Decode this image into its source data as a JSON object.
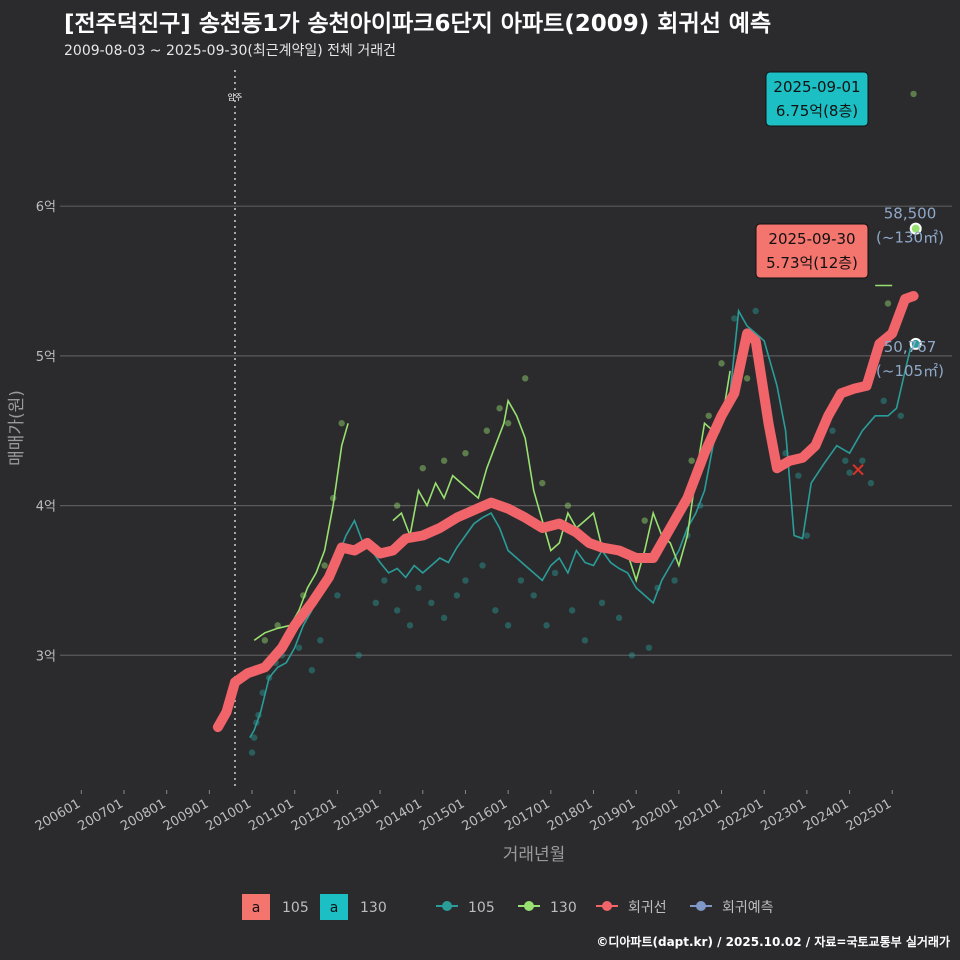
{
  "title": "[전주덕진구] 송천동1가 송천아이파크6단지 아파트(2009) 회귀선 예측",
  "subtitle": "2009-08-03 ~ 2025-09-30(최근계약일) 전체 거래건",
  "credit": "©디아파트(dapt.kr) / 2025.10.02 / 자료=국토교통부 실거래가",
  "colors": {
    "s105": "#2a9d9a",
    "s130": "#98e070",
    "trend": "#f0646a",
    "pred": "#7f98c8",
    "box130": "#1bbfc4",
    "box105": "#f4746e",
    "bg": "#2b2b2d",
    "grid": "#5a5a5c"
  },
  "chart_data": {
    "type": "line",
    "xlabel": "거래년월",
    "ylabel": "매매가(원)",
    "x_ticks": [
      "200601",
      "200701",
      "200801",
      "200901",
      "201001",
      "201101",
      "201201",
      "201301",
      "201401",
      "201501",
      "201601",
      "201701",
      "201801",
      "201901",
      "202001",
      "202101",
      "202201",
      "202301",
      "202401",
      "202501"
    ],
    "y_ticks": [
      {
        "v": 3,
        "label": "3억"
      },
      {
        "v": 4,
        "label": "4억"
      },
      {
        "v": 5,
        "label": "5억"
      },
      {
        "v": 6,
        "label": "6억"
      }
    ],
    "xlim": [
      2005.5,
      2026.4
    ],
    "ylim": [
      2.1,
      6.95
    ],
    "move_in": {
      "x": 2009.6,
      "label": "입주"
    },
    "legend": {
      "fill": [
        {
          "key": "a",
          "label": "105",
          "color": "#f4746e"
        },
        {
          "key": "a",
          "label": "130",
          "color": "#1bbfc4"
        }
      ],
      "lines": [
        {
          "label": "105",
          "color": "#2a9d9a"
        },
        {
          "label": "130",
          "color": "#98e070"
        },
        {
          "label": "회귀선",
          "color": "#f0646a"
        },
        {
          "label": "회귀예측",
          "color": "#7f98c8"
        }
      ]
    },
    "series": [
      {
        "name": "105",
        "values": [
          [
            2009.95,
            2.45
          ],
          [
            2010.05,
            2.5
          ],
          [
            2010.2,
            2.62
          ],
          [
            2010.4,
            2.85
          ],
          [
            2010.6,
            2.92
          ],
          [
            2010.8,
            2.95
          ],
          [
            2011.0,
            3.05
          ],
          [
            2011.2,
            3.2
          ],
          [
            2011.4,
            3.3
          ],
          [
            2011.6,
            3.42
          ],
          [
            2011.8,
            3.55
          ],
          [
            2012.0,
            3.65
          ],
          [
            2012.2,
            3.8
          ],
          [
            2012.4,
            3.9
          ],
          [
            2012.6,
            3.75
          ],
          [
            2012.8,
            3.7
          ],
          [
            2013.0,
            3.62
          ],
          [
            2013.2,
            3.55
          ],
          [
            2013.4,
            3.58
          ],
          [
            2013.6,
            3.52
          ],
          [
            2013.8,
            3.6
          ],
          [
            2014.0,
            3.55
          ],
          [
            2014.2,
            3.6
          ],
          [
            2014.4,
            3.65
          ],
          [
            2014.6,
            3.62
          ],
          [
            2014.8,
            3.72
          ],
          [
            2015.0,
            3.8
          ],
          [
            2015.2,
            3.88
          ],
          [
            2015.4,
            3.92
          ],
          [
            2015.6,
            3.95
          ],
          [
            2015.8,
            3.85
          ],
          [
            2016.0,
            3.7
          ],
          [
            2016.2,
            3.65
          ],
          [
            2016.4,
            3.6
          ],
          [
            2016.6,
            3.55
          ],
          [
            2016.8,
            3.5
          ],
          [
            2017.0,
            3.6
          ],
          [
            2017.2,
            3.65
          ],
          [
            2017.4,
            3.55
          ],
          [
            2017.6,
            3.7
          ],
          [
            2017.8,
            3.62
          ],
          [
            2018.0,
            3.6
          ],
          [
            2018.2,
            3.7
          ],
          [
            2018.4,
            3.62
          ],
          [
            2018.6,
            3.58
          ],
          [
            2018.8,
            3.55
          ],
          [
            2019.0,
            3.45
          ],
          [
            2019.2,
            3.4
          ],
          [
            2019.4,
            3.35
          ],
          [
            2019.6,
            3.5
          ],
          [
            2019.8,
            3.6
          ],
          [
            2020.0,
            3.7
          ],
          [
            2020.2,
            3.85
          ],
          [
            2020.4,
            3.95
          ],
          [
            2020.6,
            4.1
          ],
          [
            2020.8,
            4.4
          ],
          [
            2021.0,
            4.6
          ],
          [
            2021.2,
            4.75
          ],
          [
            2021.4,
            5.3
          ],
          [
            2021.6,
            5.2
          ],
          [
            2021.8,
            5.15
          ],
          [
            2022.0,
            5.1
          ],
          [
            2022.3,
            4.8
          ],
          [
            2022.5,
            4.5
          ],
          [
            2022.7,
            3.8
          ],
          [
            2022.9,
            3.78
          ],
          [
            2023.1,
            4.15
          ],
          [
            2023.4,
            4.28
          ],
          [
            2023.7,
            4.4
          ],
          [
            2024.0,
            4.35
          ],
          [
            2024.3,
            4.5
          ],
          [
            2024.6,
            4.6
          ],
          [
            2024.9,
            4.6
          ],
          [
            2025.1,
            4.65
          ],
          [
            2025.3,
            4.9
          ],
          [
            2025.45,
            5.08
          ]
        ]
      },
      {
        "name": "130",
        "values": [
          [
            2010.05,
            3.1
          ],
          [
            2010.3,
            3.15
          ],
          [
            2010.6,
            3.18
          ],
          [
            2010.9,
            3.2
          ],
          [
            2011.1,
            3.3
          ],
          [
            2011.3,
            3.45
          ],
          [
            2011.5,
            3.55
          ],
          [
            2011.7,
            3.7
          ],
          [
            2011.9,
            4.0
          ],
          [
            2012.1,
            4.4
          ],
          [
            2012.25,
            4.55
          ],
          [
            2013.3,
            3.9
          ],
          [
            2013.5,
            3.95
          ],
          [
            2013.7,
            3.8
          ],
          [
            2013.9,
            4.1
          ],
          [
            2014.1,
            4.0
          ],
          [
            2014.3,
            4.15
          ],
          [
            2014.5,
            4.05
          ],
          [
            2014.7,
            4.2
          ],
          [
            2014.9,
            4.15
          ],
          [
            2015.1,
            4.1
          ],
          [
            2015.3,
            4.05
          ],
          [
            2015.5,
            4.25
          ],
          [
            2015.7,
            4.4
          ],
          [
            2015.9,
            4.55
          ],
          [
            2016.0,
            4.7
          ],
          [
            2016.2,
            4.6
          ],
          [
            2016.4,
            4.45
          ],
          [
            2016.6,
            4.1
          ],
          [
            2016.8,
            3.9
          ],
          [
            2017.0,
            3.7
          ],
          [
            2017.2,
            3.75
          ],
          [
            2017.4,
            3.95
          ],
          [
            2017.6,
            3.85
          ],
          [
            2017.8,
            3.9
          ],
          [
            2018.0,
            3.95
          ],
          [
            2018.2,
            3.72
          ],
          [
            2018.4,
            3.7
          ],
          [
            2018.6,
            3.72
          ],
          [
            2018.8,
            3.68
          ],
          [
            2019.0,
            3.5
          ],
          [
            2019.2,
            3.7
          ],
          [
            2019.4,
            3.95
          ],
          [
            2019.6,
            3.8
          ],
          [
            2019.8,
            3.75
          ],
          [
            2020.0,
            3.6
          ],
          [
            2020.2,
            3.8
          ],
          [
            2020.4,
            4.2
          ],
          [
            2020.6,
            4.55
          ],
          [
            2020.8,
            4.5
          ],
          [
            2021.0,
            4.55
          ],
          [
            2021.2,
            4.9
          ],
          [
            2024.6,
            5.47
          ],
          [
            2025.0,
            5.47
          ]
        ]
      },
      {
        "name": "회귀선",
        "values": [
          [
            2009.2,
            2.52
          ],
          [
            2009.4,
            2.62
          ],
          [
            2009.6,
            2.82
          ],
          [
            2009.9,
            2.88
          ],
          [
            2010.3,
            2.92
          ],
          [
            2010.7,
            3.05
          ],
          [
            2011.0,
            3.2
          ],
          [
            2011.4,
            3.35
          ],
          [
            2011.8,
            3.52
          ],
          [
            2012.1,
            3.72
          ],
          [
            2012.4,
            3.7
          ],
          [
            2012.7,
            3.75
          ],
          [
            2013.0,
            3.68
          ],
          [
            2013.3,
            3.7
          ],
          [
            2013.6,
            3.78
          ],
          [
            2014.0,
            3.8
          ],
          [
            2014.4,
            3.85
          ],
          [
            2014.8,
            3.92
          ],
          [
            2015.2,
            3.97
          ],
          [
            2015.6,
            4.02
          ],
          [
            2016.0,
            3.98
          ],
          [
            2016.4,
            3.92
          ],
          [
            2016.8,
            3.85
          ],
          [
            2017.2,
            3.88
          ],
          [
            2017.6,
            3.82
          ],
          [
            2017.9,
            3.75
          ],
          [
            2018.2,
            3.72
          ],
          [
            2018.6,
            3.7
          ],
          [
            2019.0,
            3.65
          ],
          [
            2019.4,
            3.65
          ],
          [
            2019.8,
            3.85
          ],
          [
            2020.2,
            4.05
          ],
          [
            2020.6,
            4.35
          ],
          [
            2021.0,
            4.6
          ],
          [
            2021.3,
            4.75
          ],
          [
            2021.6,
            5.15
          ],
          [
            2021.8,
            5.1
          ],
          [
            2022.1,
            4.55
          ],
          [
            2022.3,
            4.25
          ],
          [
            2022.6,
            4.3
          ],
          [
            2022.9,
            4.32
          ],
          [
            2023.2,
            4.4
          ],
          [
            2023.5,
            4.6
          ],
          [
            2023.8,
            4.75
          ],
          [
            2024.1,
            4.78
          ],
          [
            2024.4,
            4.8
          ],
          [
            2024.7,
            5.08
          ],
          [
            2025.0,
            5.15
          ],
          [
            2025.3,
            5.38
          ],
          [
            2025.5,
            5.4
          ]
        ]
      }
    ],
    "points_105": [
      [
        2010.0,
        2.35
      ],
      [
        2010.05,
        2.45
      ],
      [
        2010.1,
        2.55
      ],
      [
        2010.15,
        2.6
      ],
      [
        2010.25,
        2.75
      ],
      [
        2010.4,
        2.85
      ],
      [
        2010.55,
        2.95
      ],
      [
        2010.7,
        3.0
      ],
      [
        2011.1,
        3.05
      ],
      [
        2011.4,
        2.9
      ],
      [
        2011.6,
        3.1
      ],
      [
        2012.0,
        3.4
      ],
      [
        2012.5,
        3.0
      ],
      [
        2012.9,
        3.35
      ],
      [
        2013.1,
        3.5
      ],
      [
        2013.4,
        3.3
      ],
      [
        2013.7,
        3.2
      ],
      [
        2013.9,
        3.45
      ],
      [
        2014.2,
        3.35
      ],
      [
        2014.5,
        3.25
      ],
      [
        2014.8,
        3.4
      ],
      [
        2015.0,
        3.5
      ],
      [
        2015.4,
        3.6
      ],
      [
        2015.7,
        3.3
      ],
      [
        2016.0,
        3.2
      ],
      [
        2016.3,
        3.5
      ],
      [
        2016.6,
        3.4
      ],
      [
        2016.9,
        3.2
      ],
      [
        2017.1,
        3.55
      ],
      [
        2017.5,
        3.3
      ],
      [
        2017.8,
        3.1
      ],
      [
        2018.2,
        3.35
      ],
      [
        2018.6,
        3.25
      ],
      [
        2018.9,
        3.0
      ],
      [
        2019.3,
        3.05
      ],
      [
        2019.5,
        3.45
      ],
      [
        2019.9,
        3.5
      ],
      [
        2020.2,
        3.8
      ],
      [
        2020.5,
        4.0
      ],
      [
        2020.9,
        4.5
      ],
      [
        2021.3,
        5.25
      ],
      [
        2021.8,
        5.3
      ],
      [
        2022.5,
        4.35
      ],
      [
        2022.8,
        4.2
      ],
      [
        2023.0,
        3.8
      ],
      [
        2023.6,
        4.5
      ],
      [
        2023.9,
        4.3
      ],
      [
        2024.0,
        4.22
      ],
      [
        2024.3,
        4.3
      ],
      [
        2024.5,
        4.15
      ],
      [
        2024.8,
        4.7
      ],
      [
        2025.2,
        4.6
      ],
      [
        2025.5,
        5.08
      ]
    ],
    "points_130": [
      [
        2010.3,
        3.1
      ],
      [
        2010.6,
        3.2
      ],
      [
        2010.9,
        3.15
      ],
      [
        2011.2,
        3.4
      ],
      [
        2011.7,
        3.6
      ],
      [
        2011.9,
        4.05
      ],
      [
        2012.1,
        4.55
      ],
      [
        2013.4,
        4.0
      ],
      [
        2014.0,
        4.25
      ],
      [
        2014.5,
        4.3
      ],
      [
        2015.0,
        4.35
      ],
      [
        2015.5,
        4.5
      ],
      [
        2015.8,
        4.65
      ],
      [
        2016.0,
        4.55
      ],
      [
        2016.4,
        4.85
      ],
      [
        2016.8,
        4.15
      ],
      [
        2017.4,
        4.0
      ],
      [
        2019.2,
        3.9
      ],
      [
        2020.3,
        4.3
      ],
      [
        2020.7,
        4.6
      ],
      [
        2021.0,
        4.95
      ],
      [
        2021.6,
        4.85
      ],
      [
        2024.9,
        5.35
      ],
      [
        2025.5,
        5.85
      ],
      [
        2025.5,
        6.75
      ]
    ],
    "red_x": [
      2024.2,
      4.24
    ],
    "annotations": [
      {
        "date": "2025-09-01",
        "text": "6.75억(8층)",
        "x": 2025.67,
        "y": 6.75,
        "color": "#1bbfc4"
      },
      {
        "date": "2025-09-30",
        "text": "5.73억(12층)",
        "x": 2025.75,
        "y": 5.73,
        "color": "#f4746e"
      }
    ],
    "side_labels": [
      {
        "value": "58,500",
        "unit": "(~130㎡)",
        "y": 5.85,
        "color": "#98e070"
      },
      {
        "value": "50,767",
        "unit": "(~105㎡)",
        "y": 5.08,
        "color": "#2a9d9a"
      }
    ]
  }
}
